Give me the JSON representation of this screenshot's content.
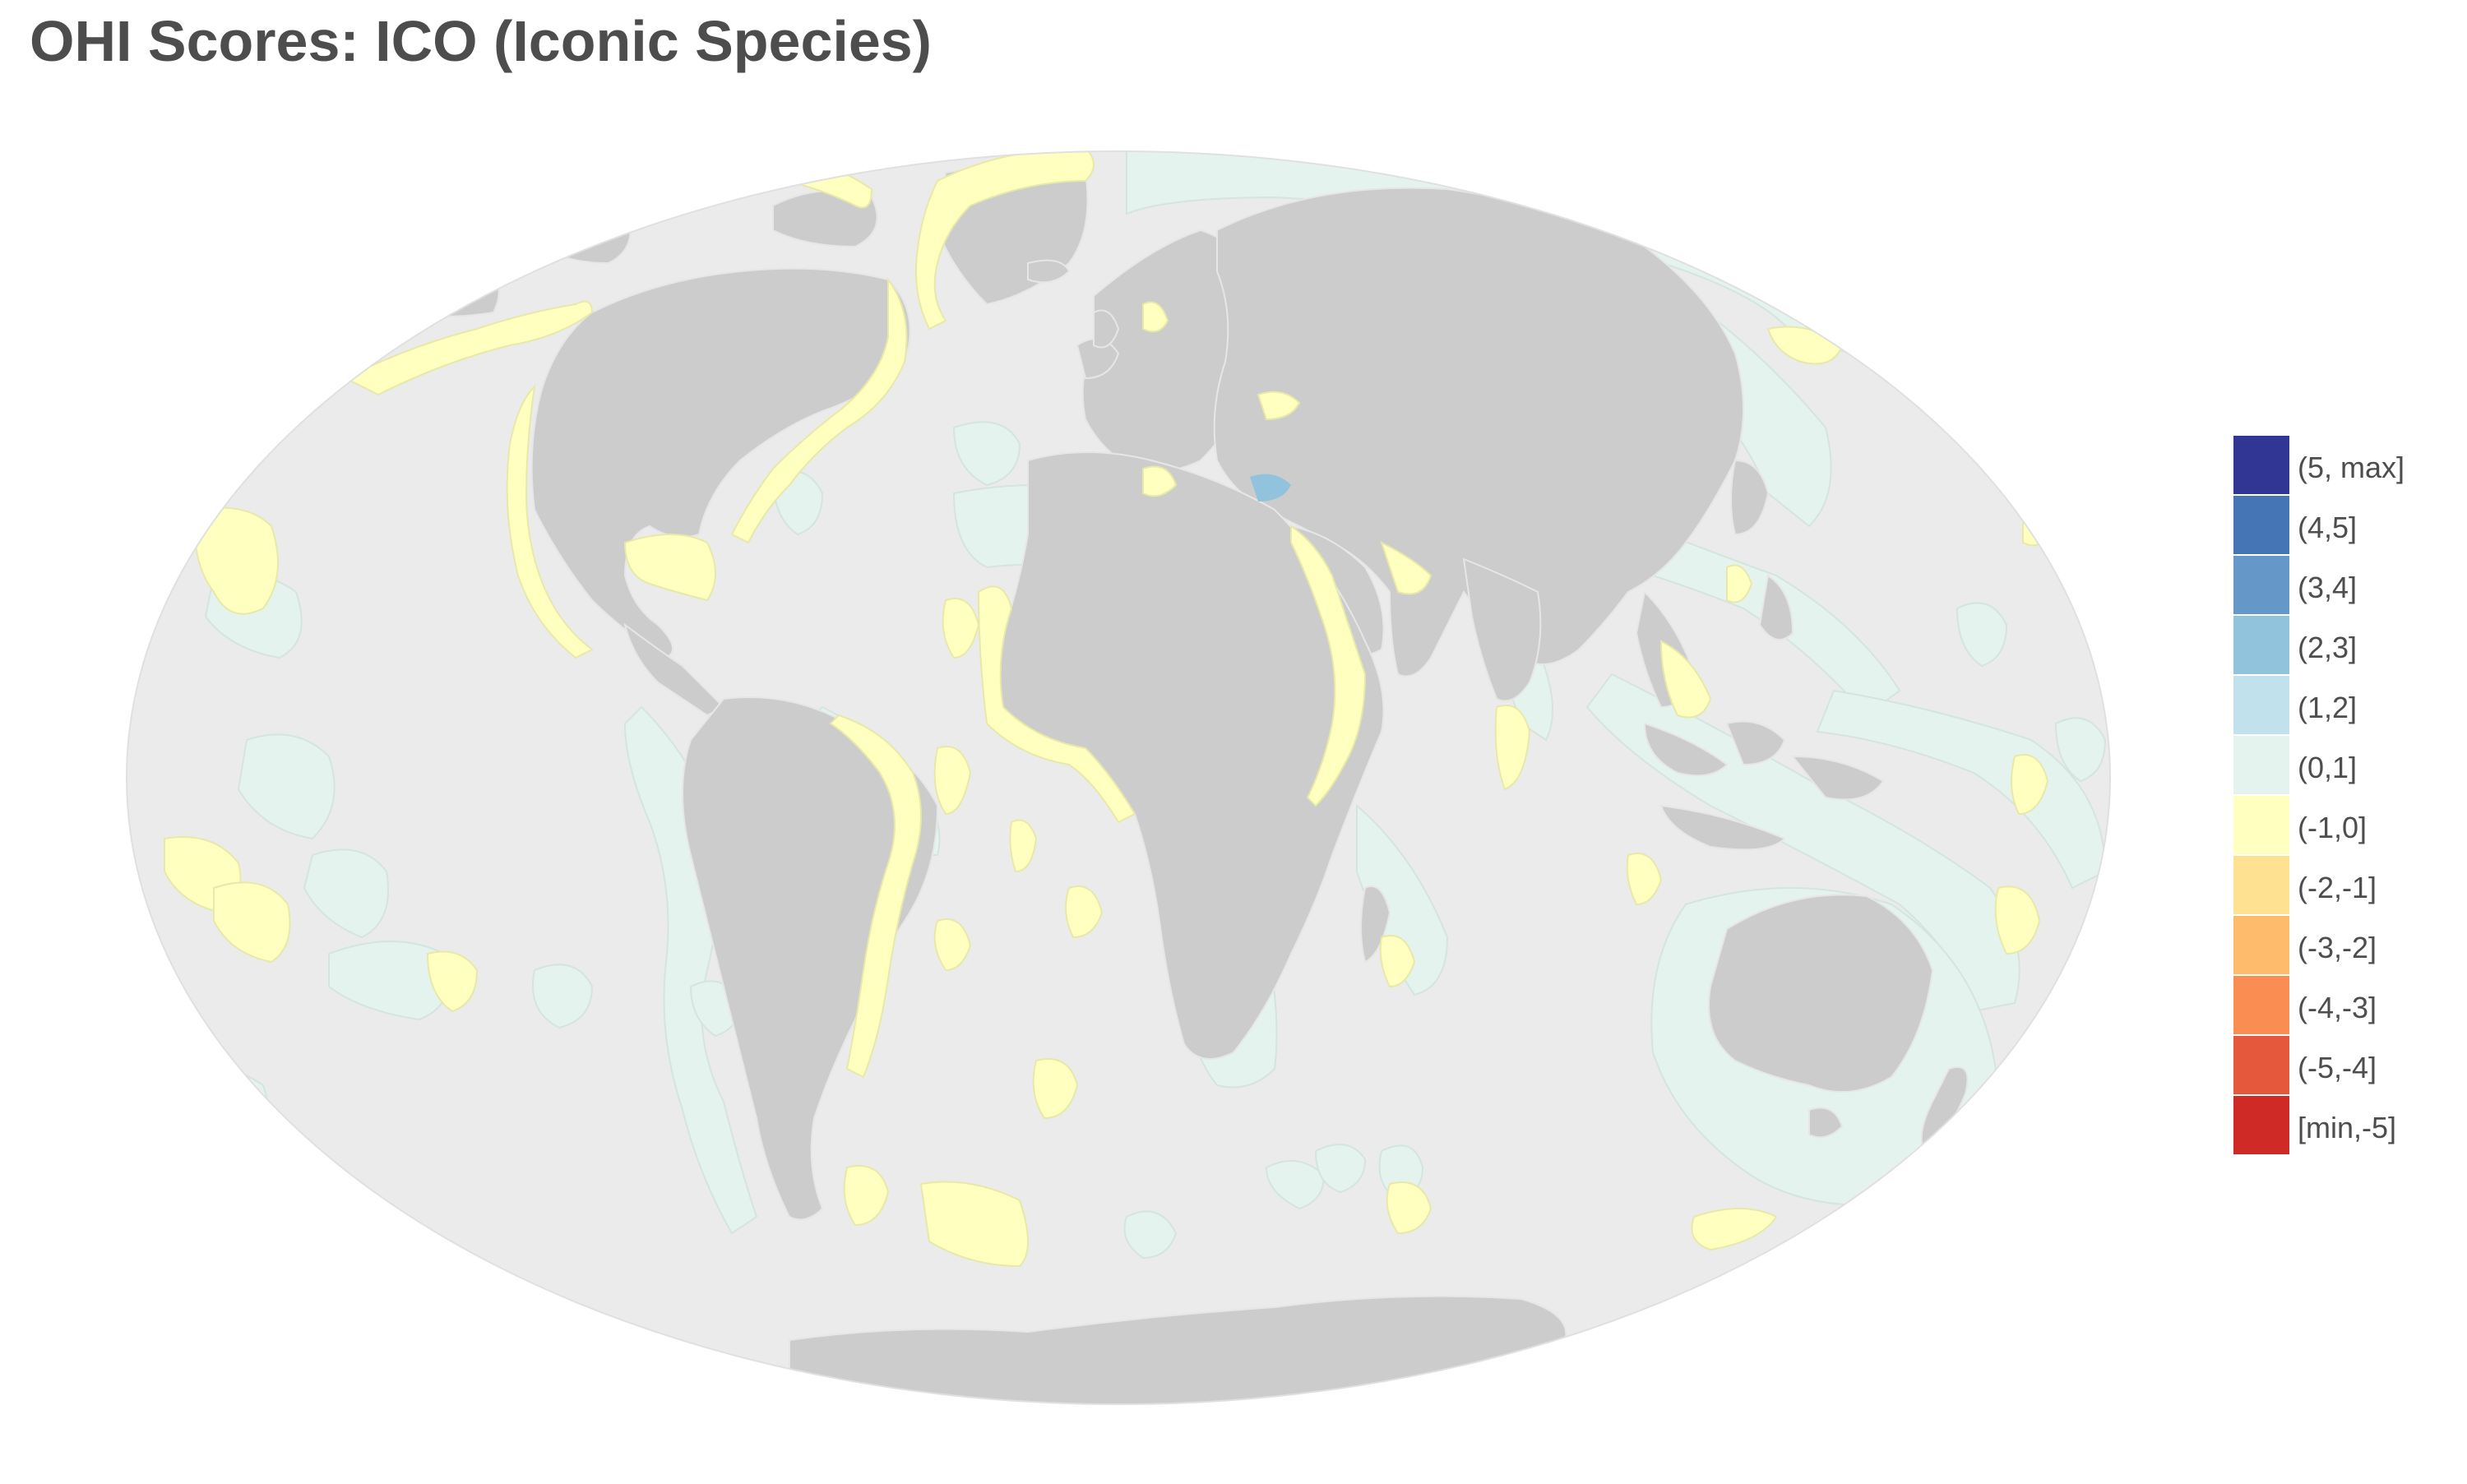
{
  "title": "OHI Scores: ICO (Iconic Species)",
  "colors": {
    "ocean": "#ebebeb",
    "land": "#cccccc",
    "land_border": "#e6e6e6",
    "eez_neutral": "#e5f3ee",
    "eez_negative": "#ffffbf",
    "eez_positive": "#92c3dc"
  },
  "legend": {
    "items": [
      {
        "label": "(5, max]",
        "color": "#313695"
      },
      {
        "label": "(4,5]",
        "color": "#4575b4"
      },
      {
        "label": "(3,4]",
        "color": "#6598c9"
      },
      {
        "label": "(2,3]",
        "color": "#92c3dc"
      },
      {
        "label": "(1,2]",
        "color": "#c1e2ed"
      },
      {
        "label": "(0,1]",
        "color": "#e5f3ee"
      },
      {
        "label": "(-1,0]",
        "color": "#ffffbf"
      },
      {
        "label": "(-2,-1]",
        "color": "#fee191"
      },
      {
        "label": "(-3,-2]",
        "color": "#fdbb6b"
      },
      {
        "label": "(-4,-3]",
        "color": "#f98d52"
      },
      {
        "label": "(-5,-4]",
        "color": "#e6583b"
      },
      {
        "label": "[min,-5]",
        "color": "#d02a27"
      }
    ]
  }
}
